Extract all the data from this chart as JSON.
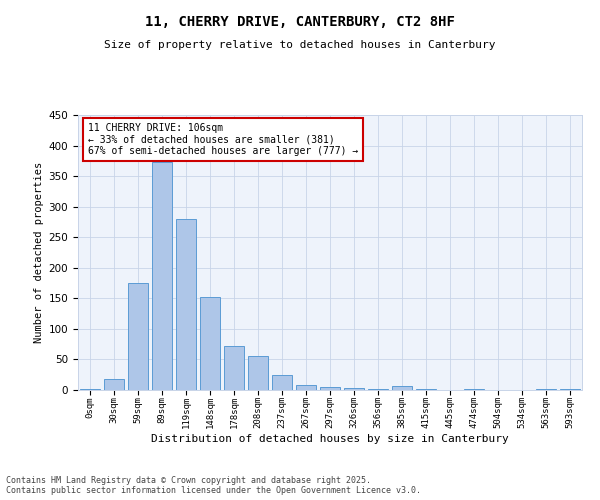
{
  "title1": "11, CHERRY DRIVE, CANTERBURY, CT2 8HF",
  "title2": "Size of property relative to detached houses in Canterbury",
  "xlabel": "Distribution of detached houses by size in Canterbury",
  "ylabel": "Number of detached properties",
  "categories": [
    "0sqm",
    "30sqm",
    "59sqm",
    "89sqm",
    "119sqm",
    "148sqm",
    "178sqm",
    "208sqm",
    "237sqm",
    "267sqm",
    "297sqm",
    "326sqm",
    "356sqm",
    "385sqm",
    "415sqm",
    "445sqm",
    "474sqm",
    "504sqm",
    "534sqm",
    "563sqm",
    "593sqm"
  ],
  "values": [
    2,
    18,
    175,
    373,
    280,
    152,
    72,
    55,
    25,
    9,
    5,
    3,
    2,
    6,
    2,
    0,
    1,
    0,
    0,
    1,
    1
  ],
  "bar_color": "#aec6e8",
  "bar_edge_color": "#5b9bd5",
  "bg_color": "#eef3fb",
  "grid_color": "#c8d4e8",
  "annotation_text": "11 CHERRY DRIVE: 106sqm\n← 33% of detached houses are smaller (381)\n67% of semi-detached houses are larger (777) →",
  "annotation_box_color": "#cc0000",
  "ylim": [
    0,
    450
  ],
  "yticks": [
    0,
    50,
    100,
    150,
    200,
    250,
    300,
    350,
    400,
    450
  ],
  "footer_line1": "Contains HM Land Registry data © Crown copyright and database right 2025.",
  "footer_line2": "Contains public sector information licensed under the Open Government Licence v3.0."
}
